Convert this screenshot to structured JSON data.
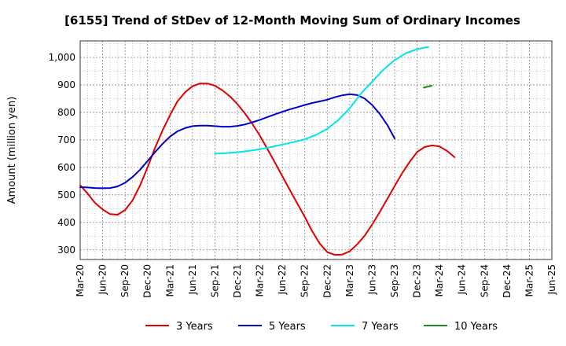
{
  "chart_data": {
    "type": "line",
    "title": "[6155]  Trend of StDev of 12-Month Moving Sum of Ordinary Incomes",
    "xlabel": "",
    "ylabel": "Amount (million yen)",
    "ylim": [
      265,
      1060
    ],
    "yticks": [
      300,
      400,
      500,
      600,
      700,
      800,
      900,
      1000
    ],
    "ytick_labels": [
      "300",
      "400",
      "500",
      "600",
      "700",
      "800",
      "900",
      "1,000"
    ],
    "categories": [
      "Mar-20",
      "Jun-20",
      "Sep-20",
      "Dec-20",
      "Mar-21",
      "Jun-21",
      "Sep-21",
      "Dec-21",
      "Mar-22",
      "Jun-22",
      "Sep-22",
      "Dec-22",
      "Mar-23",
      "Jun-23",
      "Sep-23",
      "Dec-23",
      "Mar-24",
      "Jun-24",
      "Sep-24",
      "Dec-24",
      "Mar-25",
      "Jun-25"
    ],
    "series": [
      {
        "name": "3 Years",
        "color": "#e00000",
        "points": [
          [
            0,
            535
          ],
          [
            0.33,
            505
          ],
          [
            0.67,
            470
          ],
          [
            1,
            447
          ],
          [
            1.33,
            430
          ],
          [
            1.67,
            428
          ],
          [
            2,
            445
          ],
          [
            2.33,
            480
          ],
          [
            2.67,
            535
          ],
          [
            3,
            600
          ],
          [
            3.33,
            670
          ],
          [
            3.67,
            735
          ],
          [
            4,
            790
          ],
          [
            4.33,
            840
          ],
          [
            4.67,
            873
          ],
          [
            5,
            895
          ],
          [
            5.33,
            905
          ],
          [
            5.67,
            905
          ],
          [
            6,
            897
          ],
          [
            6.33,
            880
          ],
          [
            6.67,
            858
          ],
          [
            7,
            830
          ],
          [
            7.33,
            797
          ],
          [
            7.67,
            758
          ],
          [
            8,
            715
          ],
          [
            8.33,
            668
          ],
          [
            8.67,
            618
          ],
          [
            9,
            568
          ],
          [
            9.33,
            518
          ],
          [
            9.67,
            468
          ],
          [
            10,
            420
          ],
          [
            10.33,
            368
          ],
          [
            10.67,
            322
          ],
          [
            11,
            292
          ],
          [
            11.33,
            282
          ],
          [
            11.67,
            283
          ],
          [
            12,
            295
          ],
          [
            12.33,
            320
          ],
          [
            12.67,
            352
          ],
          [
            13,
            392
          ],
          [
            13.33,
            437
          ],
          [
            13.67,
            485
          ],
          [
            14,
            532
          ],
          [
            14.33,
            578
          ],
          [
            14.67,
            620
          ],
          [
            15,
            656
          ],
          [
            15.33,
            674
          ],
          [
            15.67,
            680
          ],
          [
            16,
            676
          ],
          [
            16.33,
            660
          ],
          [
            16.67,
            637
          ]
        ]
      },
      {
        "name": "5 Years",
        "color": "#0000cc",
        "points": [
          [
            0,
            528
          ],
          [
            0.33,
            527
          ],
          [
            0.67,
            525
          ],
          [
            1,
            524
          ],
          [
            1.33,
            525
          ],
          [
            1.67,
            531
          ],
          [
            2,
            544
          ],
          [
            2.33,
            565
          ],
          [
            2.67,
            592
          ],
          [
            3,
            623
          ],
          [
            3.33,
            655
          ],
          [
            3.67,
            686
          ],
          [
            4,
            712
          ],
          [
            4.33,
            731
          ],
          [
            4.67,
            743
          ],
          [
            5,
            750
          ],
          [
            5.33,
            752
          ],
          [
            5.67,
            752
          ],
          [
            6,
            750
          ],
          [
            6.33,
            748
          ],
          [
            6.67,
            748
          ],
          [
            7,
            751
          ],
          [
            7.33,
            756
          ],
          [
            7.67,
            764
          ],
          [
            8,
            773
          ],
          [
            8.33,
            783
          ],
          [
            8.67,
            793
          ],
          [
            9,
            802
          ],
          [
            9.33,
            811
          ],
          [
            9.67,
            819
          ],
          [
            10,
            827
          ],
          [
            10.33,
            834
          ],
          [
            10.67,
            840
          ],
          [
            11,
            846
          ],
          [
            11.33,
            855
          ],
          [
            11.67,
            862
          ],
          [
            12,
            866
          ],
          [
            12.33,
            863
          ],
          [
            12.67,
            850
          ],
          [
            13,
            827
          ],
          [
            13.33,
            795
          ],
          [
            13.67,
            755
          ],
          [
            14,
            705
          ]
        ]
      },
      {
        "name": "7 Years",
        "color": "#00e5e5",
        "points": [
          [
            6,
            650
          ],
          [
            6.5,
            652
          ],
          [
            7,
            655
          ],
          [
            7.5,
            660
          ],
          [
            8,
            666
          ],
          [
            8.5,
            674
          ],
          [
            9,
            683
          ],
          [
            9.5,
            692
          ],
          [
            10,
            702
          ],
          [
            10.5,
            718
          ],
          [
            11,
            740
          ],
          [
            11.5,
            773
          ],
          [
            12,
            815
          ],
          [
            12.5,
            868
          ],
          [
            13,
            912
          ],
          [
            13.5,
            955
          ],
          [
            14,
            990
          ],
          [
            14.5,
            1015
          ],
          [
            15,
            1030
          ],
          [
            15.5,
            1038
          ]
        ]
      },
      {
        "name": "10 Years",
        "color": "#1f8a1f",
        "points": [
          [
            15.3,
            890
          ],
          [
            15.65,
            897
          ]
        ]
      }
    ],
    "legend_position": "bottom",
    "grid": true
  }
}
